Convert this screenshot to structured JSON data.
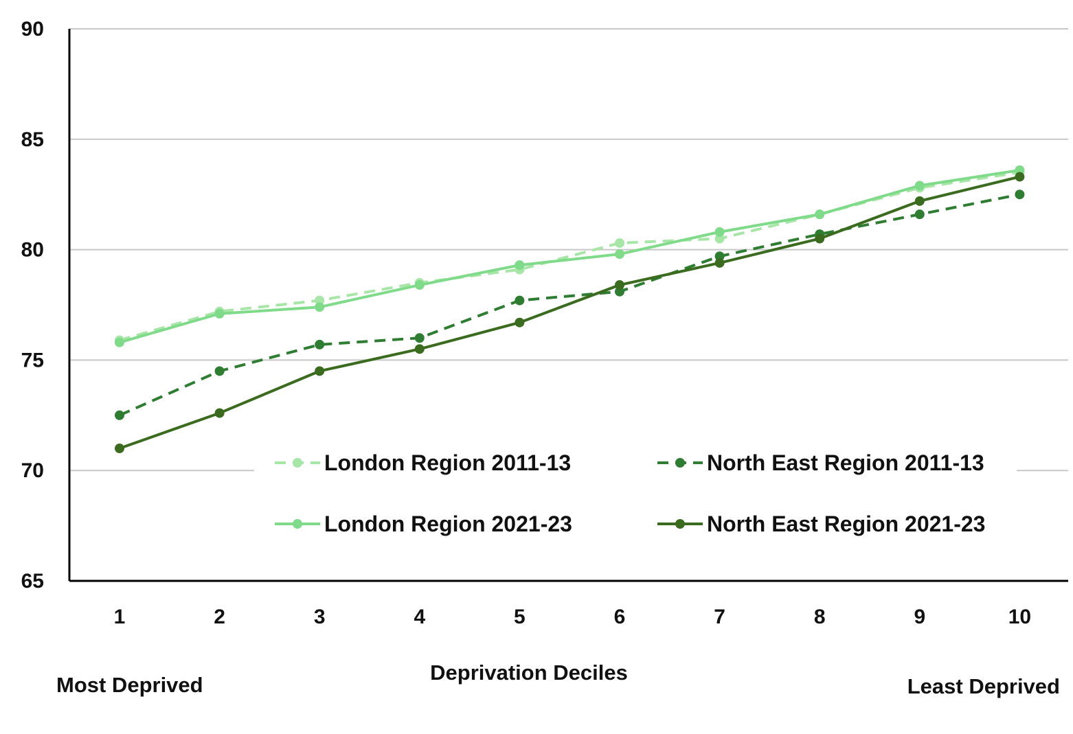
{
  "chart_data": {
    "type": "line",
    "title": "",
    "xlabel": "Deprivation Deciles",
    "ylabel": "",
    "x": [
      1,
      2,
      3,
      4,
      5,
      6,
      7,
      8,
      9,
      10
    ],
    "x_tick_labels": [
      "1",
      "2",
      "3",
      "4",
      "5",
      "6",
      "7",
      "8",
      "9",
      "10"
    ],
    "ylim": [
      65,
      90
    ],
    "y_ticks": [
      65,
      70,
      75,
      80,
      85,
      90
    ],
    "y_tick_labels": [
      "65",
      "70",
      "75",
      "80",
      "85",
      "90"
    ],
    "x_end_labels": {
      "left": "Most Deprived",
      "right": "Least Deprived"
    },
    "grid": true,
    "legend_position": "bottom-right inside plot",
    "series": [
      {
        "name": "London Region 2011-13",
        "color": "#a8e6a8",
        "dash": "dashed",
        "values": [
          75.9,
          77.2,
          77.7,
          78.5,
          79.1,
          80.3,
          80.5,
          81.6,
          82.8,
          83.5
        ]
      },
      {
        "name": "North East Region 2011-13",
        "color": "#2e7d32",
        "dash": "dashed",
        "values": [
          72.5,
          74.5,
          75.7,
          76.0,
          77.7,
          78.1,
          79.7,
          80.7,
          81.6,
          82.5
        ]
      },
      {
        "name": "London Region 2021-23",
        "color": "#7fdb8a",
        "dash": "solid",
        "values": [
          75.8,
          77.1,
          77.4,
          78.4,
          79.3,
          79.8,
          80.8,
          81.6,
          82.9,
          83.6
        ]
      },
      {
        "name": "North East Region 2021-23",
        "color": "#3a6b1e",
        "dash": "solid",
        "values": [
          71.0,
          72.6,
          74.5,
          75.5,
          76.7,
          78.4,
          79.4,
          80.5,
          82.2,
          83.3
        ]
      }
    ]
  }
}
